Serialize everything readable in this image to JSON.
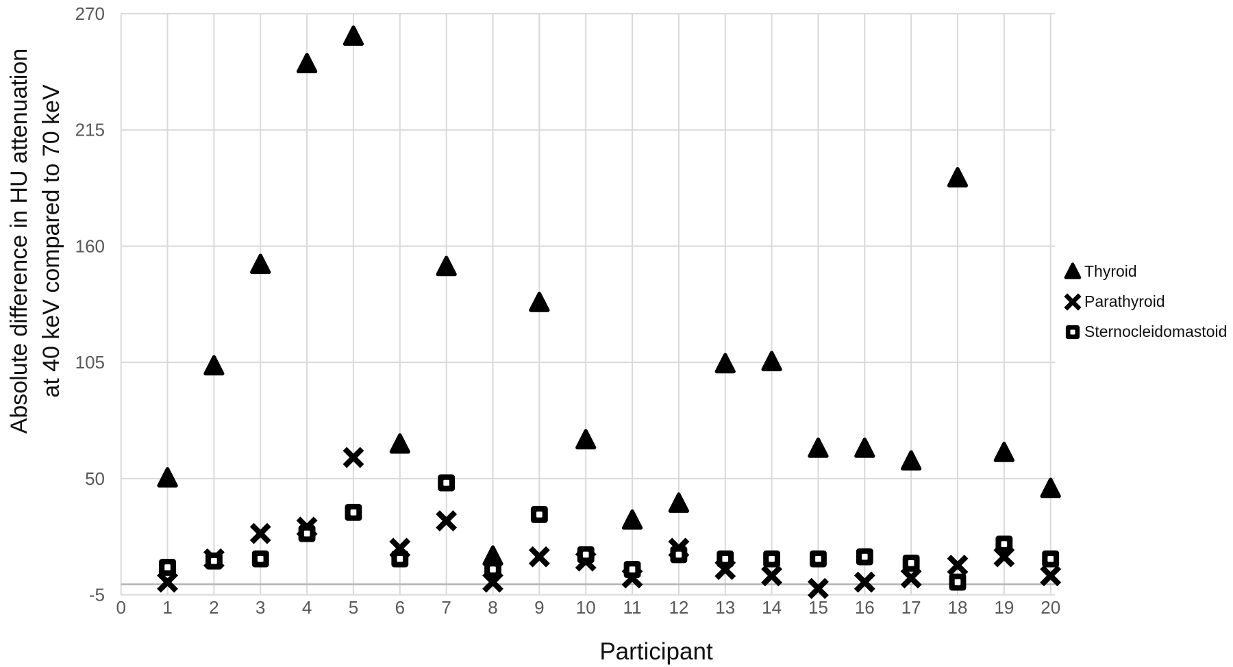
{
  "chart_data": {
    "type": "scatter",
    "title": "",
    "xlabel": "Participant",
    "ylabel_line1": "Absolute difference in HU attenuation",
    "ylabel_line2": "at 40 keV compared to 70 keV",
    "xlim": [
      0,
      20
    ],
    "ylim": [
      -5,
      270
    ],
    "x_ticks": [
      0,
      1,
      2,
      3,
      4,
      5,
      6,
      7,
      8,
      9,
      10,
      11,
      12,
      13,
      14,
      15,
      16,
      17,
      18,
      19,
      20
    ],
    "y_ticks": [
      -5,
      50,
      105,
      160,
      215,
      270
    ],
    "grid": "both",
    "legend_position": "right",
    "x": [
      1,
      2,
      3,
      4,
      5,
      6,
      7,
      8,
      9,
      10,
      11,
      12,
      13,
      14,
      15,
      16,
      17,
      18,
      19,
      20
    ],
    "series": [
      {
        "name": "Thyroid",
        "marker": "triangle",
        "values": [
          50,
          103,
          151,
          246,
          259,
          66,
          150,
          13,
          133,
          68,
          30,
          38,
          104,
          105,
          64,
          64,
          58,
          192,
          62,
          45
        ]
      },
      {
        "name": "Parathyroid",
        "marker": "x",
        "values": [
          1,
          12,
          24,
          27,
          60,
          17,
          30,
          1,
          13,
          11,
          3,
          17,
          7,
          4,
          -2,
          1,
          3,
          9,
          13,
          4
        ]
      },
      {
        "name": "Sternocleidomastoid",
        "marker": "square",
        "values": [
          8,
          11,
          12,
          24,
          34,
          12,
          48,
          7,
          33,
          14,
          7,
          14,
          12,
          12,
          12,
          13,
          10,
          1,
          19,
          12
        ]
      }
    ],
    "colors": {
      "marker": "#000000",
      "gridline": "#d9d9d9",
      "axis_line": "#b3b3b3",
      "tick_label": "#595959",
      "title_text": "#111111"
    }
  }
}
